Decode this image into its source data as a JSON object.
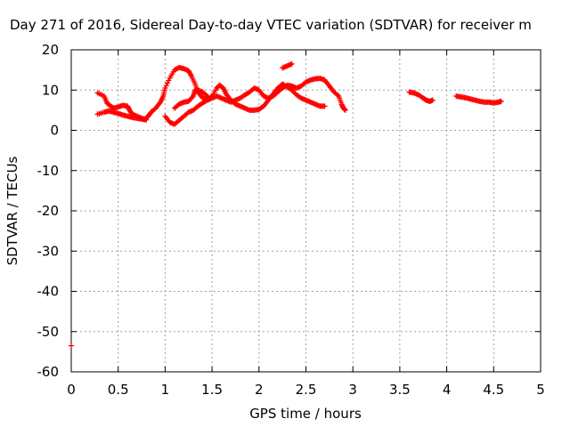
{
  "chart_data": {
    "type": "scatter",
    "title": "Day 271 of 2016, Sidereal Day-to-day VTEC variation (SDTVAR) for receiver m",
    "xlabel": "GPS time / hours",
    "ylabel": "SDTVAR / TECUs",
    "xlim": [
      0,
      5
    ],
    "ylim": [
      -60,
      20
    ],
    "xticks": [
      "0",
      "0.5",
      "1",
      "1.5",
      "2",
      "2.5",
      "3",
      "3.5",
      "4",
      "4.5",
      "5"
    ],
    "yticks": [
      "20",
      "10",
      "0",
      "-10",
      "-20",
      "-30",
      "-40",
      "-50",
      "-60"
    ],
    "grid": true,
    "marker_color": "#ff0000",
    "series": [
      {
        "points": [
          [
            0.28,
            9.3
          ],
          [
            0.35,
            8.5
          ],
          [
            0.38,
            6.8
          ],
          [
            0.42,
            6.0
          ],
          [
            0.45,
            5.5
          ],
          [
            0.5,
            5.8
          ],
          [
            0.55,
            6.2
          ],
          [
            0.6,
            6.0
          ],
          [
            0.62,
            5.0
          ],
          [
            0.65,
            4.0
          ],
          [
            0.7,
            3.5
          ],
          [
            0.75,
            3.0
          ],
          [
            0.78,
            2.7
          ],
          [
            0.82,
            3.5
          ],
          [
            0.85,
            4.5
          ],
          [
            0.9,
            5.5
          ],
          [
            0.95,
            7.0
          ],
          [
            0.98,
            8.5
          ],
          [
            1.0,
            10.5
          ],
          [
            1.05,
            13.0
          ],
          [
            1.1,
            15.0
          ],
          [
            1.15,
            15.6
          ],
          [
            1.2,
            15.3
          ],
          [
            1.25,
            14.8
          ],
          [
            1.28,
            13.5
          ],
          [
            1.32,
            11.5
          ],
          [
            1.35,
            9.5
          ],
          [
            1.4,
            8.0
          ],
          [
            1.45,
            7.5
          ],
          [
            1.5,
            8.5
          ],
          [
            1.55,
            10.5
          ],
          [
            1.58,
            11.2
          ],
          [
            1.62,
            10.5
          ],
          [
            1.65,
            9.0
          ],
          [
            1.7,
            7.5
          ],
          [
            1.75,
            6.5
          ],
          [
            1.8,
            6.0
          ],
          [
            1.85,
            5.5
          ],
          [
            1.9,
            5.0
          ],
          [
            1.95,
            5.0
          ],
          [
            2.0,
            5.2
          ],
          [
            2.05,
            6.0
          ],
          [
            2.1,
            7.5
          ],
          [
            2.15,
            9.0
          ],
          [
            2.2,
            10.5
          ],
          [
            2.25,
            11.5
          ],
          [
            2.28,
            11.0
          ],
          [
            2.35,
            10.0
          ],
          [
            2.4,
            8.8
          ],
          [
            2.45,
            8.0
          ],
          [
            2.5,
            7.5
          ],
          [
            2.55,
            7.0
          ],
          [
            2.6,
            6.5
          ],
          [
            2.65,
            6.0
          ],
          [
            2.7,
            6.0
          ]
        ]
      },
      {
        "points": [
          [
            0.28,
            4.0
          ],
          [
            0.35,
            4.5
          ],
          [
            0.4,
            4.8
          ],
          [
            0.45,
            4.5
          ],
          [
            0.5,
            4.2
          ],
          [
            0.55,
            3.8
          ],
          [
            0.6,
            3.5
          ],
          [
            0.65,
            3.2
          ],
          [
            0.7,
            3.0
          ],
          [
            0.75,
            2.8
          ],
          [
            0.8,
            2.6
          ]
        ]
      },
      {
        "points": [
          [
            1.0,
            3.5
          ],
          [
            1.05,
            2.0
          ],
          [
            1.1,
            1.5
          ],
          [
            1.15,
            2.5
          ],
          [
            1.2,
            3.5
          ],
          [
            1.25,
            4.5
          ],
          [
            1.3,
            5.0
          ],
          [
            1.35,
            6.0
          ],
          [
            1.4,
            6.8
          ],
          [
            1.45,
            7.5
          ],
          [
            1.5,
            8.0
          ],
          [
            1.55,
            8.5
          ],
          [
            1.6,
            8.0
          ],
          [
            1.65,
            7.5
          ],
          [
            1.7,
            7.0
          ],
          [
            1.75,
            7.5
          ],
          [
            1.8,
            8.0
          ],
          [
            1.85,
            8.8
          ],
          [
            1.9,
            9.5
          ],
          [
            1.95,
            10.5
          ],
          [
            2.0,
            10.0
          ],
          [
            2.05,
            8.5
          ],
          [
            2.1,
            8.0
          ],
          [
            2.15,
            8.5
          ],
          [
            2.2,
            9.5
          ],
          [
            2.25,
            10.5
          ],
          [
            2.3,
            11.2
          ],
          [
            2.35,
            11.0
          ],
          [
            2.4,
            10.5
          ],
          [
            2.45,
            11.0
          ],
          [
            2.5,
            12.0
          ],
          [
            2.55,
            12.5
          ],
          [
            2.6,
            12.8
          ],
          [
            2.65,
            12.9
          ],
          [
            2.7,
            12.5
          ],
          [
            2.75,
            11.0
          ],
          [
            2.8,
            9.5
          ],
          [
            2.85,
            8.5
          ],
          [
            2.88,
            6.5
          ],
          [
            2.9,
            5.5
          ],
          [
            2.92,
            5.0
          ]
        ]
      },
      {
        "points": [
          [
            1.1,
            5.5
          ],
          [
            1.15,
            6.5
          ],
          [
            1.2,
            7.0
          ],
          [
            1.25,
            7.2
          ],
          [
            1.3,
            8.5
          ],
          [
            1.32,
            10.0
          ],
          [
            1.35,
            10.0
          ],
          [
            1.4,
            9.5
          ],
          [
            1.45,
            8.5
          ]
        ]
      },
      {
        "points": [
          [
            2.25,
            15.5
          ],
          [
            2.3,
            16.0
          ],
          [
            2.35,
            16.5
          ]
        ]
      },
      {
        "points": [
          [
            3.6,
            9.5
          ],
          [
            3.65,
            9.3
          ],
          [
            3.7,
            8.8
          ],
          [
            3.75,
            8.0
          ],
          [
            3.78,
            7.5
          ],
          [
            3.82,
            7.2
          ],
          [
            3.85,
            7.5
          ]
        ]
      },
      {
        "points": [
          [
            4.1,
            8.5
          ],
          [
            4.15,
            8.3
          ],
          [
            4.2,
            8.1
          ],
          [
            4.25,
            7.8
          ],
          [
            4.3,
            7.5
          ],
          [
            4.35,
            7.2
          ],
          [
            4.4,
            7.0
          ],
          [
            4.45,
            7.0
          ],
          [
            4.5,
            6.8
          ],
          [
            4.55,
            7.0
          ],
          [
            4.58,
            7.2
          ]
        ]
      },
      {
        "points": [
          [
            0.0,
            -53.5
          ]
        ]
      }
    ]
  }
}
